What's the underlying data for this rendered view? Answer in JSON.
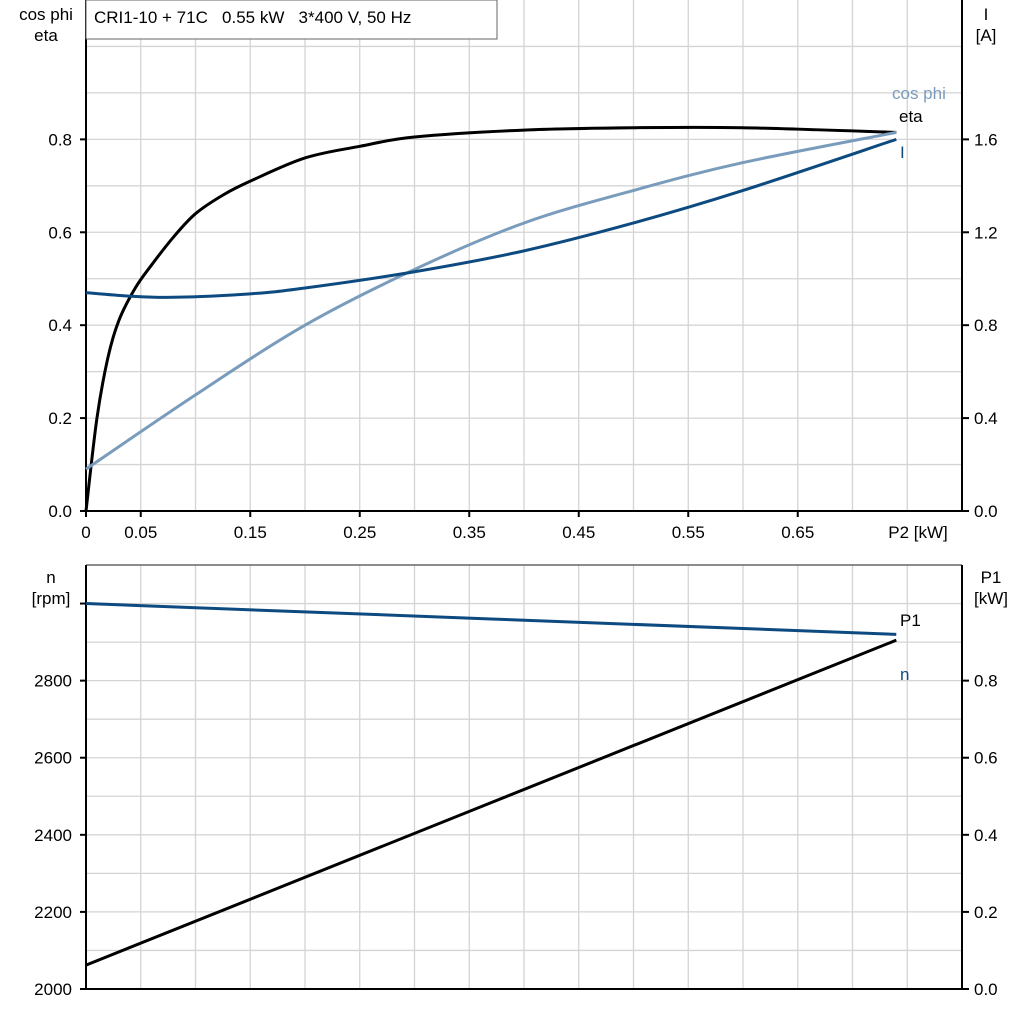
{
  "chart_data": [
    {
      "type": "line",
      "title": "CRI1-10 + 71C   0.55 kW   3*400 V, 50 Hz",
      "xlabel": "P2 [kW]",
      "ylabel_left": [
        "cos phi",
        "eta"
      ],
      "ylabel_right": [
        "I",
        "[A]"
      ],
      "xlim": [
        0,
        0.8
      ],
      "ylim_left": [
        0,
        1.1
      ],
      "ylim_right": [
        0,
        2.2
      ],
      "x_ticks": [
        "0",
        "0.05",
        "0.15",
        "0.25",
        "0.35",
        "0.45",
        "0.55",
        "0.65"
      ],
      "x_tick_values": [
        0,
        0.05,
        0.15,
        0.25,
        0.35,
        0.45,
        0.55,
        0.65
      ],
      "y_ticks_left": [
        "0.0",
        "0.2",
        "0.4",
        "0.6",
        "0.8"
      ],
      "y_ticks_right": [
        "0.0",
        "0.4",
        "0.8",
        "1.2",
        "1.6"
      ],
      "grid": true,
      "series": [
        {
          "name": "eta",
          "axis": "left",
          "color": "#000000",
          "x": [
            0,
            0.01,
            0.02,
            0.03,
            0.045,
            0.06,
            0.08,
            0.1,
            0.125,
            0.15,
            0.2,
            0.25,
            0.3,
            0.4,
            0.5,
            0.6,
            0.74
          ],
          "y": [
            0,
            0.2,
            0.33,
            0.41,
            0.48,
            0.53,
            0.59,
            0.64,
            0.68,
            0.71,
            0.76,
            0.785,
            0.805,
            0.82,
            0.825,
            0.825,
            0.815
          ]
        },
        {
          "name": "cos phi",
          "axis": "left",
          "color": "#7a9cbc",
          "x": [
            0,
            0.1,
            0.2,
            0.3,
            0.4,
            0.5,
            0.6,
            0.74
          ],
          "y": [
            0.09,
            0.25,
            0.4,
            0.52,
            0.62,
            0.69,
            0.75,
            0.815
          ]
        },
        {
          "name": "I",
          "axis": "right",
          "color": "#0d4a80",
          "x": [
            0,
            0.04,
            0.08,
            0.15,
            0.2,
            0.3,
            0.4,
            0.5,
            0.6,
            0.74
          ],
          "y": [
            0.94,
            0.925,
            0.92,
            0.935,
            0.96,
            1.03,
            1.12,
            1.24,
            1.38,
            1.6
          ]
        }
      ]
    },
    {
      "type": "line",
      "ylabel_left": [
        "n",
        "[rpm]"
      ],
      "ylabel_right": [
        "P1",
        "[kW]"
      ],
      "xlim": [
        0,
        0.8
      ],
      "ylim_left": [
        2000,
        3100
      ],
      "ylim_right": [
        0,
        1.1
      ],
      "y_ticks_left": [
        "2000",
        "2200",
        "2400",
        "2600",
        "2800"
      ],
      "y_ticks_right": [
        "0.0",
        "0.2",
        "0.4",
        "0.6",
        "0.8"
      ],
      "grid": true,
      "series": [
        {
          "name": "n",
          "axis": "left",
          "color": "#0d4a80",
          "x": [
            0,
            0.74
          ],
          "y": [
            3000,
            2920
          ]
        },
        {
          "name": "P1",
          "axis": "right",
          "color": "#000000",
          "x": [
            0,
            0.74
          ],
          "y": [
            0.062,
            0.905
          ]
        }
      ]
    }
  ]
}
